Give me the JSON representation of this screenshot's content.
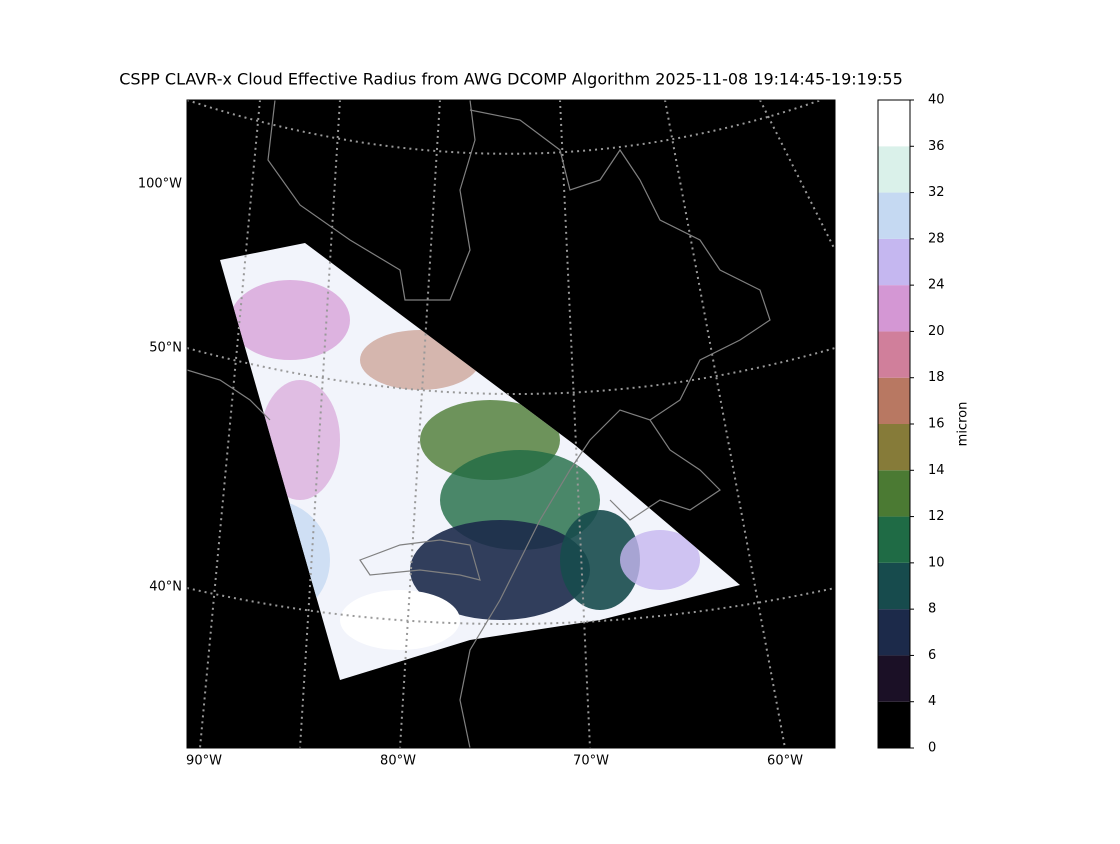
{
  "title": "CSPP CLAVR-x Cloud Effective Radius from AWG DCOMP Algorithm 2025-11-08 19:14:45-19:19:55",
  "map": {
    "lon_labels": [
      "90°W",
      "80°W",
      "70°W",
      "60°W"
    ],
    "lat_labels": [
      "100°W",
      "50°N",
      "40°N"
    ]
  },
  "colorbar": {
    "label": "micron",
    "ticks": [
      0,
      4,
      6,
      8,
      10,
      12,
      14,
      16,
      18,
      20,
      24,
      28,
      32,
      36,
      40
    ],
    "colors": [
      "#000000",
      "#1b1026",
      "#1c2a4a",
      "#174b4d",
      "#1f6b45",
      "#4b7a33",
      "#867b39",
      "#b87862",
      "#d07f9b",
      "#d497d4",
      "#c5b7f0",
      "#c5d9f2",
      "#daf1ea",
      "#ffffff"
    ]
  }
}
